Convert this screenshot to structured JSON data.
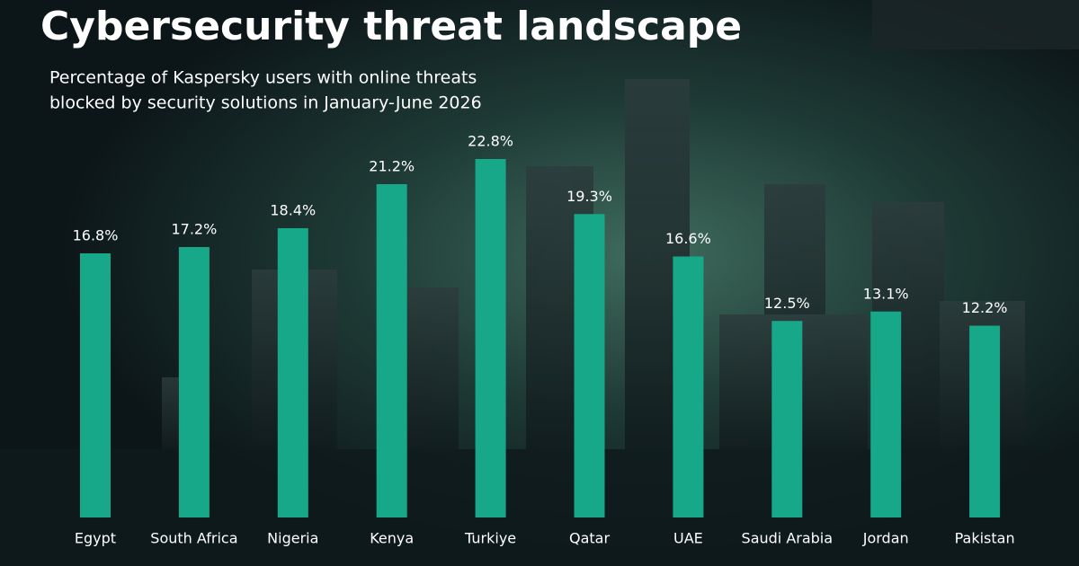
{
  "chart_data": {
    "type": "bar",
    "title": "Cybersecurity threat landscape",
    "subtitle": [
      "Percentage of Kaspersky users with online threats",
      "blocked by security solutions in January-June 2026"
    ],
    "categories": [
      "Egypt",
      "South Africa",
      "Nigeria",
      "Kenya",
      "Turkiye",
      "Qatar",
      "UAE",
      "Saudi Arabia",
      "Jordan",
      "Pakistan"
    ],
    "values": [
      16.8,
      17.2,
      18.4,
      21.2,
      22.8,
      19.3,
      16.6,
      12.5,
      13.1,
      12.2
    ],
    "value_labels": [
      "16.8%",
      "17.2%",
      "18.4%",
      "21.2%",
      "22.8%",
      "19.3%",
      "16.6%",
      "12.5%",
      "13.1%",
      "12.2%"
    ],
    "color": "#17a889"
  }
}
